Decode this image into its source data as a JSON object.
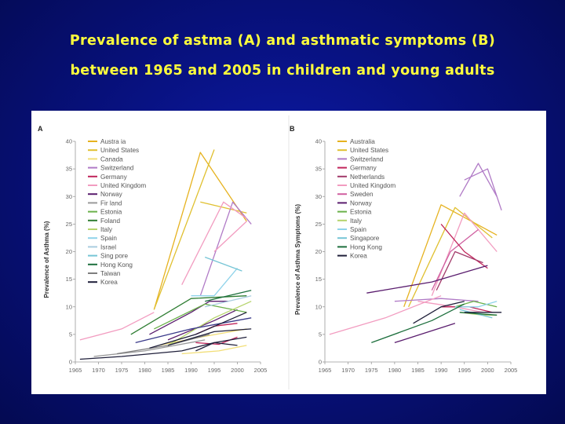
{
  "slide": {
    "title_line1": "Prevalence of astma (A) and  asthmatic symptoms (B)",
    "title_line2": "between 1965 and 2005 in children and young adults"
  },
  "chart_data": [
    {
      "type": "line",
      "panel": "A",
      "xlabel": "",
      "ylabel": "Prevalence of Asthma (%)",
      "xlim": [
        1965,
        2005
      ],
      "ylim": [
        0,
        40
      ],
      "xticks": [
        "1965",
        "1970",
        "1975",
        "1980",
        "1985",
        "1990",
        "1995",
        "2000",
        "2005"
      ],
      "yticks": [
        "0",
        "5",
        "10",
        "15",
        "20",
        "25",
        "30",
        "35",
        "40"
      ],
      "legend": [
        {
          "name": "Austra ia",
          "color": "#e6b21f"
        },
        {
          "name": "United States",
          "color": "#e0c030"
        },
        {
          "name": "Canada",
          "color": "#f2de77"
        },
        {
          "name": "Switzerland",
          "color": "#b07ac6"
        },
        {
          "name": "Germany",
          "color": "#c0245a"
        },
        {
          "name": "United Kingdom",
          "color": "#f29cc0"
        },
        {
          "name": "Norway",
          "color": "#5a1d6e"
        },
        {
          "name": "Fir land",
          "color": "#9a9a9a"
        },
        {
          "name": "Estonia",
          "color": "#6ab04a"
        },
        {
          "name": "Foland",
          "color": "#2e7d32"
        },
        {
          "name": "Italy",
          "color": "#b5d36b"
        },
        {
          "name": "Spain",
          "color": "#8fd3ea"
        },
        {
          "name": "Israel",
          "color": "#a9cde0"
        },
        {
          "name": "Sing pore",
          "color": "#76c5d6"
        },
        {
          "name": "Hong Kong",
          "color": "#1d6f3d"
        },
        {
          "name": "Taiwan",
          "color": "#7e7e7e"
        },
        {
          "name": "Korea",
          "color": "#1f1f3a"
        }
      ],
      "series": [
        {
          "color": "#e6b21f",
          "points": [
            [
              1982,
              9.5
            ],
            [
              1992,
              38
            ],
            [
              2002,
              25.5
            ]
          ]
        },
        {
          "color": "#e0c030",
          "points": [
            [
              1982,
              9.5
            ],
            [
              1995,
              38.5
            ]
          ]
        },
        {
          "color": "#e0c030",
          "points": [
            [
              1992,
              29
            ],
            [
              2002,
              27
            ]
          ]
        },
        {
          "color": "#f2de77",
          "points": [
            [
              1983,
              3
            ],
            [
              1992,
              4.5
            ],
            [
              2002,
              6
            ]
          ]
        },
        {
          "color": "#f2de77",
          "points": [
            [
              1988,
              1.5
            ],
            [
              1996,
              2
            ],
            [
              2002,
              3
            ]
          ]
        },
        {
          "color": "#b07ac6",
          "points": [
            [
              1992,
              12
            ],
            [
              1999,
              29
            ],
            [
              2003,
              25
            ]
          ]
        },
        {
          "color": "#f29cc0",
          "points": [
            [
              1988,
              14
            ],
            [
              1997,
              29
            ],
            [
              2002,
              26
            ]
          ]
        },
        {
          "color": "#f29cc0",
          "points": [
            [
              1966,
              4
            ],
            [
              1975,
              6
            ],
            [
              1982,
              9
            ]
          ]
        },
        {
          "color": "#f29cc0",
          "points": [
            [
              1995,
              20
            ],
            [
              2002,
              25.5
            ]
          ]
        },
        {
          "color": "#c0245a",
          "points": [
            [
              1991,
              5
            ],
            [
              1995,
              6.5
            ],
            [
              2000,
              7
            ]
          ]
        },
        {
          "color": "#c0245a",
          "points": [
            [
              1991,
              3.5
            ],
            [
              1996,
              3.2
            ],
            [
              2000,
              4.5
            ]
          ]
        },
        {
          "color": "#5a1d6e",
          "points": [
            [
              1981,
              5
            ],
            [
              1990,
              9
            ],
            [
              1994,
              11
            ],
            [
              1998,
              11
            ]
          ]
        },
        {
          "color": "#5a1d6e",
          "points": [
            [
              1985,
              4
            ],
            [
              1995,
              7.5
            ],
            [
              2000,
              9.5
            ]
          ]
        },
        {
          "color": "#9a9a9a",
          "points": [
            [
              1969,
              1
            ],
            [
              1980,
              2
            ],
            [
              1993,
              4
            ]
          ]
        },
        {
          "color": "#6ab04a",
          "points": [
            [
              1982,
              6
            ],
            [
              1993,
              10.5
            ],
            [
              2002,
              9
            ]
          ]
        },
        {
          "color": "#2e7d32",
          "points": [
            [
              1977,
              5
            ],
            [
              1990,
              11.5
            ],
            [
              2002,
              12
            ]
          ]
        },
        {
          "color": "#b5d36b",
          "points": [
            [
              1985,
              3
            ],
            [
              1995,
              8
            ],
            [
              2003,
              11
            ]
          ]
        },
        {
          "color": "#8fd3ea",
          "points": [
            [
              1990,
              12
            ],
            [
              1995,
              12
            ],
            [
              2000,
              17
            ]
          ]
        },
        {
          "color": "#a9cde0",
          "points": [
            [
              1993,
              10
            ],
            [
              2003,
              12
            ]
          ]
        },
        {
          "color": "#76c5d6",
          "points": [
            [
              1993,
              19
            ],
            [
              2001,
              16.5
            ]
          ]
        },
        {
          "color": "#1d6f3d",
          "points": [
            [
              1993,
              11
            ],
            [
              2003,
              13
            ]
          ]
        },
        {
          "color": "#7e7e7e",
          "points": [
            [
              1974,
              1.5
            ],
            [
              1985,
              3
            ],
            [
              1994,
              5
            ]
          ]
        },
        {
          "color": "#1f1f3a",
          "points": [
            [
              1966,
              0.5
            ],
            [
              1975,
              1
            ],
            [
              1988,
              2
            ],
            [
              1995,
              3.5
            ],
            [
              2002,
              4.5
            ]
          ]
        },
        {
          "color": "#1f1f3a",
          "points": [
            [
              1985,
              3
            ],
            [
              1995,
              5.5
            ],
            [
              2003,
              6
            ]
          ]
        },
        {
          "color": "#1f1f3a",
          "points": [
            [
              1991,
              2
            ],
            [
              1995,
              3.5
            ],
            [
              2000,
              3
            ]
          ]
        },
        {
          "color": "#3a3a8a",
          "points": [
            [
              1978,
              3.5
            ],
            [
              1990,
              6
            ],
            [
              2003,
              8
            ]
          ]
        },
        {
          "color": "#1f1f3a",
          "points": [
            [
              1981,
              2.5
            ],
            [
              1991,
              5
            ],
            [
              2002,
              9
            ]
          ]
        }
      ]
    },
    {
      "type": "line",
      "panel": "B",
      "xlabel": "",
      "ylabel": "Prevalence of Asthma Symptoms (%)",
      "xlim": [
        1965,
        2005
      ],
      "ylim": [
        0,
        40
      ],
      "xticks": [
        "1965",
        "1970",
        "1975",
        "1980",
        "1985",
        "1990",
        "1995",
        "2000",
        "2005"
      ],
      "yticks": [
        "0",
        "5",
        "10",
        "15",
        "20",
        "25",
        "30",
        "35",
        "40"
      ],
      "legend": [
        {
          "name": "Australia",
          "color": "#e6b21f"
        },
        {
          "name": "United States",
          "color": "#e0c030"
        },
        {
          "name": "Switzerland",
          "color": "#b07ac6"
        },
        {
          "name": "Germany",
          "color": "#c0245a"
        },
        {
          "name": "Netherlands",
          "color": "#a23a6a"
        },
        {
          "name": "United Kingdom",
          "color": "#f29cc0"
        },
        {
          "name": "Sweden",
          "color": "#d05fa0"
        },
        {
          "name": "Norway",
          "color": "#5a1d6e"
        },
        {
          "name": "Estonia",
          "color": "#6ab04a"
        },
        {
          "name": "Italy",
          "color": "#b5d36b"
        },
        {
          "name": "Spain",
          "color": "#8fd3ea"
        },
        {
          "name": "Singapore",
          "color": "#76c5d6"
        },
        {
          "name": "Hong Kong",
          "color": "#1d6f3d"
        },
        {
          "name": "Korea",
          "color": "#1f1f3a"
        }
      ],
      "series": [
        {
          "color": "#e6b21f",
          "points": [
            [
              1982,
              10
            ],
            [
              1990,
              28.5
            ],
            [
              2002,
              23
            ]
          ]
        },
        {
          "color": "#e0c030",
          "points": [
            [
              1983,
              10
            ],
            [
              1993,
              28
            ],
            [
              2001,
              22.5
            ]
          ]
        },
        {
          "color": "#b07ac6",
          "points": [
            [
              1994,
              30
            ],
            [
              1998,
              36
            ],
            [
              2002,
              30
            ]
          ]
        },
        {
          "color": "#b07ac6",
          "points": [
            [
              1995,
              33
            ],
            [
              2000,
              35
            ],
            [
              2003,
              27.5
            ]
          ]
        },
        {
          "color": "#b07ac6",
          "points": [
            [
              1980,
              11
            ],
            [
              1990,
              11.5
            ],
            [
              1998,
              11
            ]
          ]
        },
        {
          "color": "#f29cc0",
          "points": [
            [
              1966,
              5
            ],
            [
              1978,
              8
            ],
            [
              1990,
              12
            ]
          ]
        },
        {
          "color": "#f29cc0",
          "points": [
            [
              1988,
              12
            ],
            [
              1995,
              27
            ],
            [
              2002,
              20
            ]
          ]
        },
        {
          "color": "#f29cc0",
          "points": [
            [
              1985,
              11
            ],
            [
              1993,
              10
            ],
            [
              1999,
              9
            ]
          ]
        },
        {
          "color": "#d05fa0",
          "points": [
            [
              1988,
              13
            ],
            [
              1992,
              20
            ],
            [
              1998,
              24
            ]
          ]
        },
        {
          "color": "#c0245a",
          "points": [
            [
              1990,
              25
            ],
            [
              1995,
              20
            ],
            [
              2000,
              17
            ]
          ]
        },
        {
          "color": "#c0245a",
          "points": [
            [
              1990,
              10
            ],
            [
              1996,
              10
            ],
            [
              2001,
              9
            ]
          ]
        },
        {
          "color": "#a23a6a",
          "points": [
            [
              1989,
              13
            ],
            [
              1993,
              20
            ],
            [
              1999,
              18
            ]
          ]
        },
        {
          "color": "#5a1d6e",
          "points": [
            [
              1974,
              12.5
            ],
            [
              1988,
              14.5
            ],
            [
              2000,
              17.5
            ]
          ]
        },
        {
          "color": "#5a1d6e",
          "points": [
            [
              1980,
              3.5
            ],
            [
              1993,
              7
            ]
          ]
        },
        {
          "color": "#6ab04a",
          "points": [
            [
              1993,
              10
            ],
            [
              1997,
              11
            ],
            [
              2002,
              10
            ]
          ]
        },
        {
          "color": "#b5d36b",
          "points": [
            [
              1994,
              9
            ],
            [
              1999,
              8.5
            ],
            [
              2002,
              8.5
            ]
          ]
        },
        {
          "color": "#8fd3ea",
          "points": [
            [
              1993,
              10
            ],
            [
              1998,
              10
            ],
            [
              2002,
              11
            ]
          ]
        },
        {
          "color": "#76c5d6",
          "points": [
            [
              1994,
              9.5
            ],
            [
              2001,
              8
            ]
          ]
        },
        {
          "color": "#1d6f3d",
          "points": [
            [
              1975,
              3.5
            ],
            [
              1988,
              7.5
            ],
            [
              1995,
              10.5
            ]
          ]
        },
        {
          "color": "#1d6f3d",
          "points": [
            [
              1994,
              9
            ],
            [
              2002,
              8.5
            ]
          ]
        },
        {
          "color": "#1f1f3a",
          "points": [
            [
              1984,
              7
            ],
            [
              1990,
              10
            ],
            [
              1995,
              11
            ]
          ]
        },
        {
          "color": "#1f1f3a",
          "points": [
            [
              1995,
              9
            ],
            [
              2003,
              9
            ]
          ]
        }
      ]
    }
  ]
}
